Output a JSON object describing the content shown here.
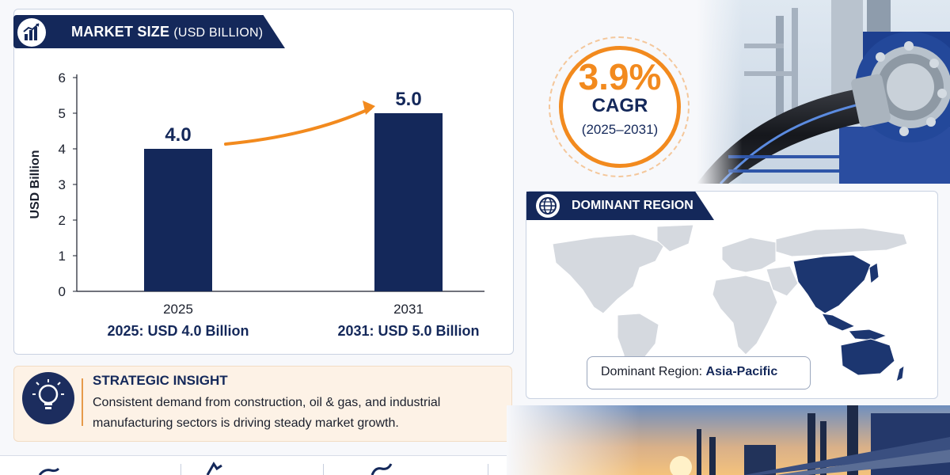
{
  "market_panel": {
    "title": "MARKET SIZE",
    "title_unit": "(USD BILLION)",
    "icon": "bar-chart-icon"
  },
  "chart_data": {
    "type": "bar",
    "categories": [
      "2025",
      "2031"
    ],
    "values": [
      4.0,
      5.0
    ],
    "value_labels": [
      "4.0",
      "5.0"
    ],
    "ylabel": "USD Billion",
    "ylim": [
      0,
      6
    ],
    "yticks": [
      "0",
      "1",
      "2",
      "3",
      "4",
      "5",
      "6"
    ],
    "captions": [
      "2025: USD 4.0 Billion",
      "2031: USD 5.0 Billion"
    ],
    "bar_color": "#14285a",
    "arrow_color": "#f28a1e"
  },
  "insight": {
    "title": "STRATEGIC INSIGHT",
    "text": "Consistent demand from construction, oil & gas, and industrial manufacturing sectors is driving steady market growth.",
    "icon": "lightbulb-icon"
  },
  "cagr": {
    "value": "3.9%",
    "label": "CAGR",
    "period": "(2025–2031)",
    "accent": "#f28a1e"
  },
  "region": {
    "title": "DOMINANT REGION",
    "icon": "globe-icon",
    "caption_prefix": "Dominant Region: ",
    "caption_value": "Asia-Pacific",
    "highlight_color": "#1c3670",
    "land_color": "#d5d9df"
  },
  "colors": {
    "navy": "#14285a",
    "orange": "#f28a1e"
  }
}
